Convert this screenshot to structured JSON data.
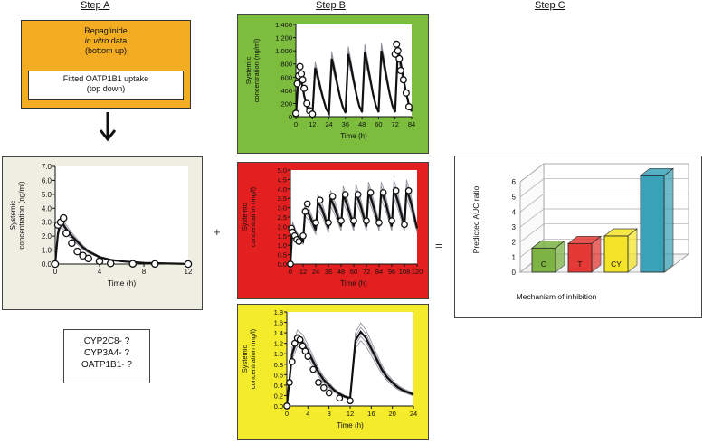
{
  "steps": {
    "a": "Step A",
    "b": "Step B",
    "c": "Step C"
  },
  "repaglinide_box": {
    "line1": "Repaglinide",
    "line2": "in vitro",
    "line2_suffix": " data",
    "line3": "(bottom up)",
    "inner_line1": "Fitted OATP1B1 uptake",
    "inner_line2": "(top down)"
  },
  "enzymes_box": {
    "lines": [
      "CYP2C8- ?",
      "CYP3A4- ?",
      "OATP1B1- ?"
    ]
  },
  "operators": {
    "plus": "+",
    "equals": "="
  },
  "colors": {
    "orange": "#f4ad22",
    "panel_beige": "#efeee3",
    "green": "#7cbd3e",
    "red": "#e41f1f",
    "yellow": "#f4ec2a",
    "bar_green": "#7cb342",
    "bar_red": "#e53935",
    "bar_yellow": "#f5e32a",
    "bar_teal": "#3aa2b8"
  },
  "chart_data": [
    {
      "id": "step-a-profile",
      "type": "line",
      "xlabel": "Time (h)",
      "ylabel": "Systemic concentration (ng/ml)",
      "xlim": [
        0,
        12
      ],
      "ylim": [
        0,
        7
      ],
      "xticks": [
        "0",
        "4",
        "8",
        "12"
      ],
      "yticks": [
        "0.0",
        "1.0",
        "2.0",
        "3.0",
        "4.0",
        "5.0",
        "6.0",
        "7.0"
      ],
      "observed": {
        "x": [
          0,
          0.25,
          0.5,
          0.75,
          1,
          1.5,
          2,
          2.5,
          3,
          4,
          5,
          7,
          9,
          12
        ],
        "y": [
          0,
          2.8,
          3.0,
          3.3,
          2.2,
          1.5,
          0.9,
          0.6,
          0.4,
          0.2,
          0.05,
          0.02,
          0.01,
          0.0
        ]
      },
      "predicted_mean": {
        "x": [
          0,
          0.25,
          0.5,
          0.75,
          1,
          1.5,
          2,
          2.5,
          3,
          4,
          5,
          6,
          8,
          12
        ],
        "y": [
          0,
          2.2,
          3.0,
          2.8,
          2.5,
          2.0,
          1.6,
          1.2,
          0.9,
          0.5,
          0.3,
          0.2,
          0.08,
          0.01
        ]
      }
    },
    {
      "id": "step-b-rifampicin",
      "type": "line",
      "xlabel": "Time (h)",
      "ylabel": "Systemic concentration (ng/ml)",
      "xlim": [
        0,
        84
      ],
      "ylim": [
        0,
        1400
      ],
      "xticks": [
        "0",
        "12",
        "24",
        "36",
        "48",
        "60",
        "72",
        "84"
      ],
      "yticks": [
        "0",
        "200",
        "400",
        "600",
        "800",
        "1,000",
        "1,200",
        "1,400"
      ],
      "observed": {
        "x": [
          0,
          1,
          2,
          3,
          4,
          5,
          6,
          8,
          10,
          12,
          72,
          73,
          74,
          75,
          76,
          78,
          80,
          82
        ],
        "y": [
          50,
          500,
          620,
          760,
          650,
          560,
          430,
          200,
          90,
          40,
          950,
          1100,
          1000,
          880,
          700,
          560,
          360,
          150
        ]
      },
      "predicted_mean": {
        "x": [
          0,
          2,
          4,
          6,
          8,
          10,
          12,
          14,
          16,
          18,
          20,
          22,
          24,
          26,
          28,
          30,
          32,
          34,
          36,
          38,
          40,
          42,
          44,
          46,
          48,
          50,
          52,
          54,
          56,
          58,
          60,
          62,
          64,
          66,
          68,
          70,
          72,
          74,
          76,
          78,
          80,
          82,
          84
        ],
        "y": [
          0,
          650,
          560,
          320,
          150,
          60,
          20,
          740,
          600,
          420,
          260,
          120,
          50,
          880,
          700,
          500,
          300,
          150,
          60,
          950,
          760,
          540,
          330,
          160,
          70,
          980,
          780,
          560,
          340,
          170,
          70,
          1000,
          800,
          570,
          350,
          170,
          70,
          1020,
          810,
          580,
          360,
          180,
          80
        ]
      }
    },
    {
      "id": "step-b-clarithromycin",
      "type": "line",
      "xlabel": "Time (h)",
      "ylabel": "Systemic concentration (mg/l)",
      "xlim": [
        0,
        120
      ],
      "ylim": [
        0,
        5
      ],
      "xticks": [
        "0",
        "12",
        "24",
        "36",
        "48",
        "60",
        "72",
        "84",
        "96",
        "108",
        "120"
      ],
      "yticks": [
        "0.0",
        "0.5",
        "1.0",
        "1.5",
        "2.0",
        "2.5",
        "3.0",
        "3.5",
        "4.0",
        "4.5",
        "5.0"
      ],
      "observed": {
        "x": [
          0,
          1,
          2,
          4,
          6,
          8,
          12,
          14,
          16,
          24,
          28,
          36,
          40,
          48,
          52,
          60,
          64,
          72,
          76,
          84,
          88,
          96,
          100,
          108,
          112
        ],
        "y": [
          0,
          1.9,
          1.7,
          1.5,
          1.3,
          1.2,
          1.5,
          2.8,
          3.2,
          2.2,
          3.4,
          2.2,
          3.6,
          2.3,
          3.7,
          2.3,
          3.7,
          2.3,
          3.8,
          2.2,
          3.8,
          2.3,
          3.9,
          2.1,
          3.9
        ]
      },
      "predicted_mean": {
        "x": [
          0,
          2,
          6,
          12,
          14,
          18,
          24,
          26,
          30,
          36,
          38,
          42,
          48,
          50,
          54,
          60,
          62,
          66,
          72,
          74,
          78,
          84,
          86,
          90,
          96,
          98,
          102,
          108,
          110,
          114,
          120
        ],
        "y": [
          0,
          2.0,
          1.5,
          1.2,
          2.9,
          2.6,
          1.8,
          3.3,
          2.9,
          1.9,
          3.5,
          3.0,
          2.0,
          3.7,
          3.1,
          2.0,
          3.8,
          3.2,
          2.0,
          3.9,
          3.2,
          2.0,
          3.9,
          3.3,
          2.0,
          4.0,
          3.3,
          2.0,
          4.0,
          3.3,
          1.9
        ]
      }
    },
    {
      "id": "step-b-itraconazole",
      "type": "line",
      "xlabel": "Time (h)",
      "ylabel": "Systemic concentration (mg/l)",
      "xlim": [
        0,
        24
      ],
      "ylim": [
        0,
        1.8
      ],
      "xticks": [
        "0",
        "4",
        "8",
        "12",
        "16",
        "20",
        "24"
      ],
      "yticks": [
        "0.0",
        "0.2",
        "0.4",
        "0.6",
        "0.8",
        "1.0",
        "1.2",
        "1.4",
        "1.6",
        "1.8"
      ],
      "observed": {
        "x": [
          0,
          0.5,
          1,
          1.5,
          2,
          2.5,
          3,
          3.5,
          4,
          5,
          6,
          7,
          8,
          10,
          12
        ],
        "y": [
          0,
          0.45,
          0.85,
          1.2,
          1.3,
          1.27,
          1.15,
          1.05,
          0.95,
          0.7,
          0.45,
          0.35,
          0.25,
          0.15,
          0.1
        ]
      },
      "predicted_mean": {
        "x": [
          0,
          1,
          2,
          3,
          4,
          5,
          6,
          7,
          8,
          9,
          10,
          11,
          12,
          13,
          14,
          15,
          16,
          17,
          18,
          19,
          20,
          21,
          22,
          23,
          24
        ],
        "y": [
          0,
          1.0,
          1.3,
          1.22,
          1.05,
          0.85,
          0.65,
          0.5,
          0.4,
          0.3,
          0.23,
          0.18,
          0.15,
          1.25,
          1.42,
          1.3,
          1.1,
          0.9,
          0.7,
          0.55,
          0.45,
          0.36,
          0.3,
          0.26,
          0.22
        ]
      }
    },
    {
      "id": "step-c-auc-ratio",
      "type": "bar",
      "xlabel": "Mechanism of inhibition",
      "ylabel": "Predicted AUC ratio",
      "ylim": [
        0,
        6
      ],
      "yticks": [
        "0",
        "1",
        "2",
        "3",
        "4",
        "5",
        "6"
      ],
      "categories": [
        "C",
        "T",
        "CY",
        ""
      ],
      "values": [
        1.6,
        1.9,
        2.4,
        6.4
      ],
      "colors": [
        "#7cb342",
        "#e53935",
        "#f5e32a",
        "#3aa2b8"
      ]
    }
  ]
}
